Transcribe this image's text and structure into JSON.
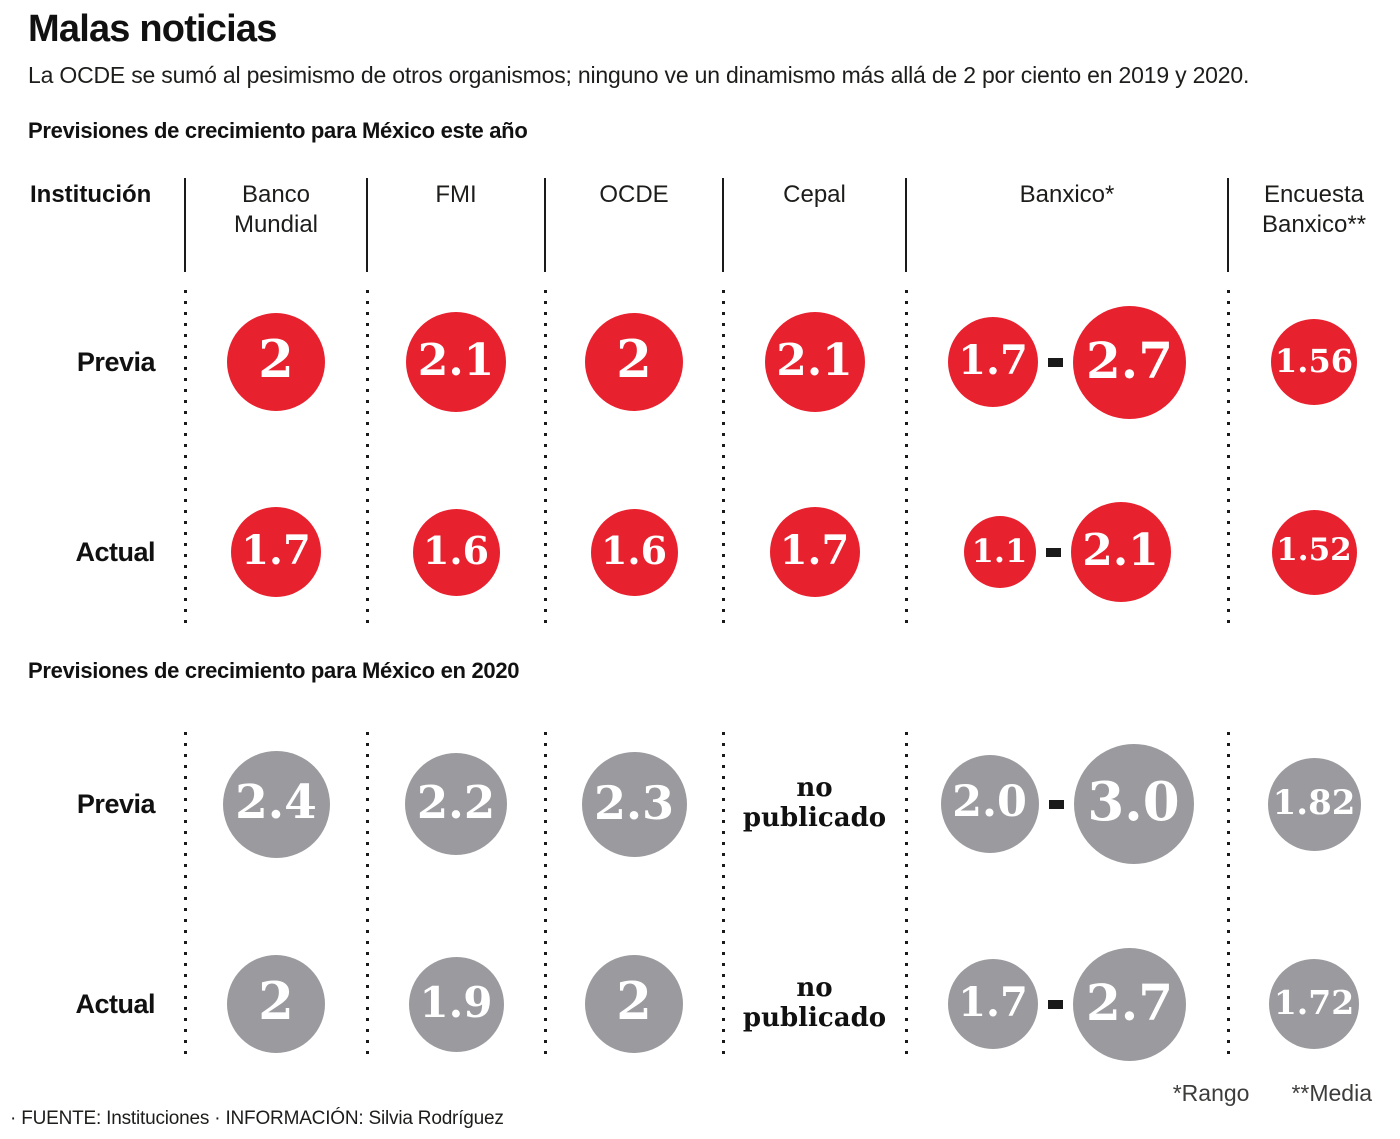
{
  "title": "Malas noticias",
  "subtitle": "La OCDE se sumó al pesimismo de otros organismos; ninguno ve un dinamismo más allá de 2 por ciento en 2019 y 2020.",
  "columns": [
    "Institución",
    "Banco\nMundial",
    "FMI",
    "OCDE",
    "Cepal",
    "Banxico*",
    "Encuesta\nBanxico**"
  ],
  "column_keys": [
    "institucion",
    "banco-mundial",
    "fmi",
    "ocde",
    "cepal",
    "banxico",
    "encuesta-banxico"
  ],
  "sections": [
    {
      "heading": "Previsiones de crecimiento para México este año",
      "circle_color": "#e8212e",
      "rows": [
        {
          "label": "Previa",
          "cells": [
            {
              "type": "circle",
              "value": "2"
            },
            {
              "type": "circle",
              "value": "2.1"
            },
            {
              "type": "circle",
              "value": "2"
            },
            {
              "type": "circle",
              "value": "2.1"
            },
            {
              "type": "range",
              "low": "1.7",
              "high": "2.7"
            },
            {
              "type": "circle",
              "value": "1.56"
            }
          ]
        },
        {
          "label": "Actual",
          "cells": [
            {
              "type": "circle",
              "value": "1.7"
            },
            {
              "type": "circle",
              "value": "1.6"
            },
            {
              "type": "circle",
              "value": "1.6"
            },
            {
              "type": "circle",
              "value": "1.7"
            },
            {
              "type": "range",
              "low": "1.1",
              "high": "2.1"
            },
            {
              "type": "circle",
              "value": "1.52"
            }
          ]
        }
      ]
    },
    {
      "heading": "Previsiones  de crecimiento para México en 2020",
      "circle_color": "#9b9a9f",
      "rows": [
        {
          "label": "Previa",
          "cells": [
            {
              "type": "circle",
              "value": "2.4"
            },
            {
              "type": "circle",
              "value": "2.2"
            },
            {
              "type": "circle",
              "value": "2.3"
            },
            {
              "type": "text",
              "text": "no\npublicado"
            },
            {
              "type": "range",
              "low": "2.0",
              "high": "3.0"
            },
            {
              "type": "circle",
              "value": "1.82"
            }
          ]
        },
        {
          "label": "Actual",
          "cells": [
            {
              "type": "circle",
              "value": "2"
            },
            {
              "type": "circle",
              "value": "1.9"
            },
            {
              "type": "circle",
              "value": "2"
            },
            {
              "type": "text",
              "text": "no\npublicado"
            },
            {
              "type": "range",
              "low": "1.7",
              "high": "2.7"
            },
            {
              "type": "circle",
              "value": "1.72"
            }
          ]
        }
      ]
    }
  ],
  "footnotes": {
    "rango": "*Rango",
    "media": "**Media"
  },
  "source": "· FUENTE: Instituciones · INFORMACIÓN: Silvia Rodríguez",
  "colors": {
    "red": "#e8212e",
    "gray": "#9b9a9f",
    "ink": "#1a1a1a",
    "circle_text": "#ffffff"
  },
  "chart_data": {
    "type": "table",
    "title": "Malas noticias",
    "subtitle": "La OCDE se sumó al pesimismo de otros organismos; ninguno ve un dinamismo más allá de 2 por ciento en 2019 y 2020.",
    "institutions": [
      "Banco Mundial",
      "FMI",
      "OCDE",
      "Cepal",
      "Banxico",
      "Encuesta Banxico"
    ],
    "tables": [
      {
        "heading": "Previsiones de crecimiento para México este año",
        "rows": [
          {
            "label": "Previa",
            "values": [
              2,
              2.1,
              2,
              2.1,
              [
                1.7,
                2.7
              ],
              1.56
            ]
          },
          {
            "label": "Actual",
            "values": [
              1.7,
              1.6,
              1.6,
              1.7,
              [
                1.1,
                2.1
              ],
              1.52
            ]
          }
        ]
      },
      {
        "heading": "Previsiones de crecimiento para México en 2020",
        "rows": [
          {
            "label": "Previa",
            "values": [
              2.4,
              2.2,
              2.3,
              null,
              [
                2.0,
                3.0
              ],
              1.82
            ]
          },
          {
            "label": "Actual",
            "values": [
              2,
              1.9,
              2,
              null,
              [
                1.7,
                2.7
              ],
              1.72
            ]
          }
        ]
      }
    ],
    "null_label": "no publicado",
    "notes": [
      "*Rango",
      "**Media"
    ],
    "legend_position": "none",
    "encoding": "circle size proportional to value; red = este año, gray = 2020"
  }
}
